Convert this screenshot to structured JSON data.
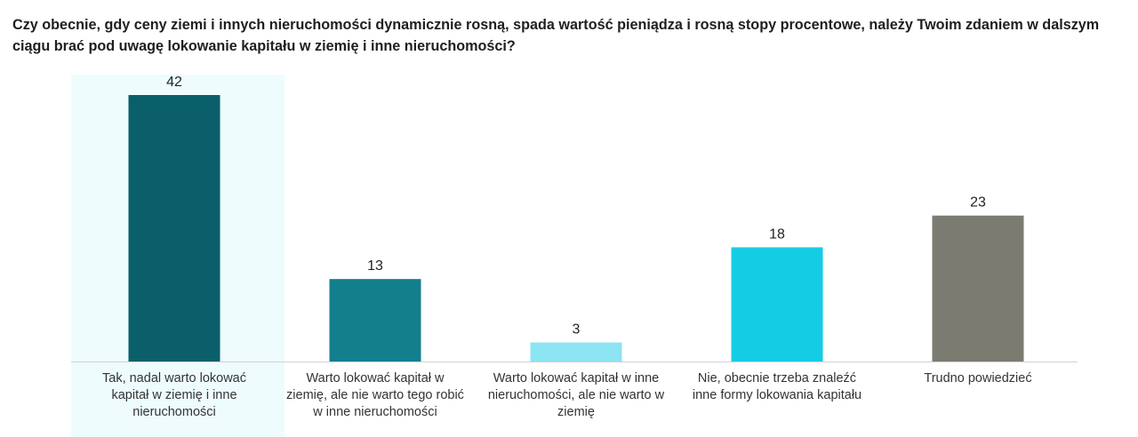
{
  "chart_data": {
    "type": "bar",
    "title": "Czy obecnie, gdy ceny ziemi i innych nieruchomości dynamicznie rosną, spada wartość pieniądza i rosną stopy procentowe, należy Twoim zdaniem w dalszym ciągu brać pod uwagę lokowanie kapitału w ziemię i inne nieruchomości?",
    "xlabel": "",
    "ylabel": "",
    "ylim": [
      0,
      42
    ],
    "grid": false,
    "categories": [
      [
        "Tak, nadal warto lokować",
        "kapitał w ziemię i inne",
        "nieruchomości"
      ],
      [
        "Warto lokować kapitał w",
        "ziemię, ale nie warto tego robić",
        "w inne nieruchomości"
      ],
      [
        "Warto lokować kapitał w inne",
        "nieruchomości, ale nie warto w",
        "ziemię"
      ],
      [
        "Nie, obecnie trzeba znaleźć",
        "inne formy lokowania kapitału"
      ],
      [
        "Trudno powiedzieć"
      ]
    ],
    "values": [
      42,
      13,
      3,
      18,
      23
    ],
    "colors": [
      "#0b5f6b",
      "#137f8d",
      "#8de4f3",
      "#14cde5",
      "#7c7b72"
    ],
    "highlight_color": "#eefcfd"
  }
}
